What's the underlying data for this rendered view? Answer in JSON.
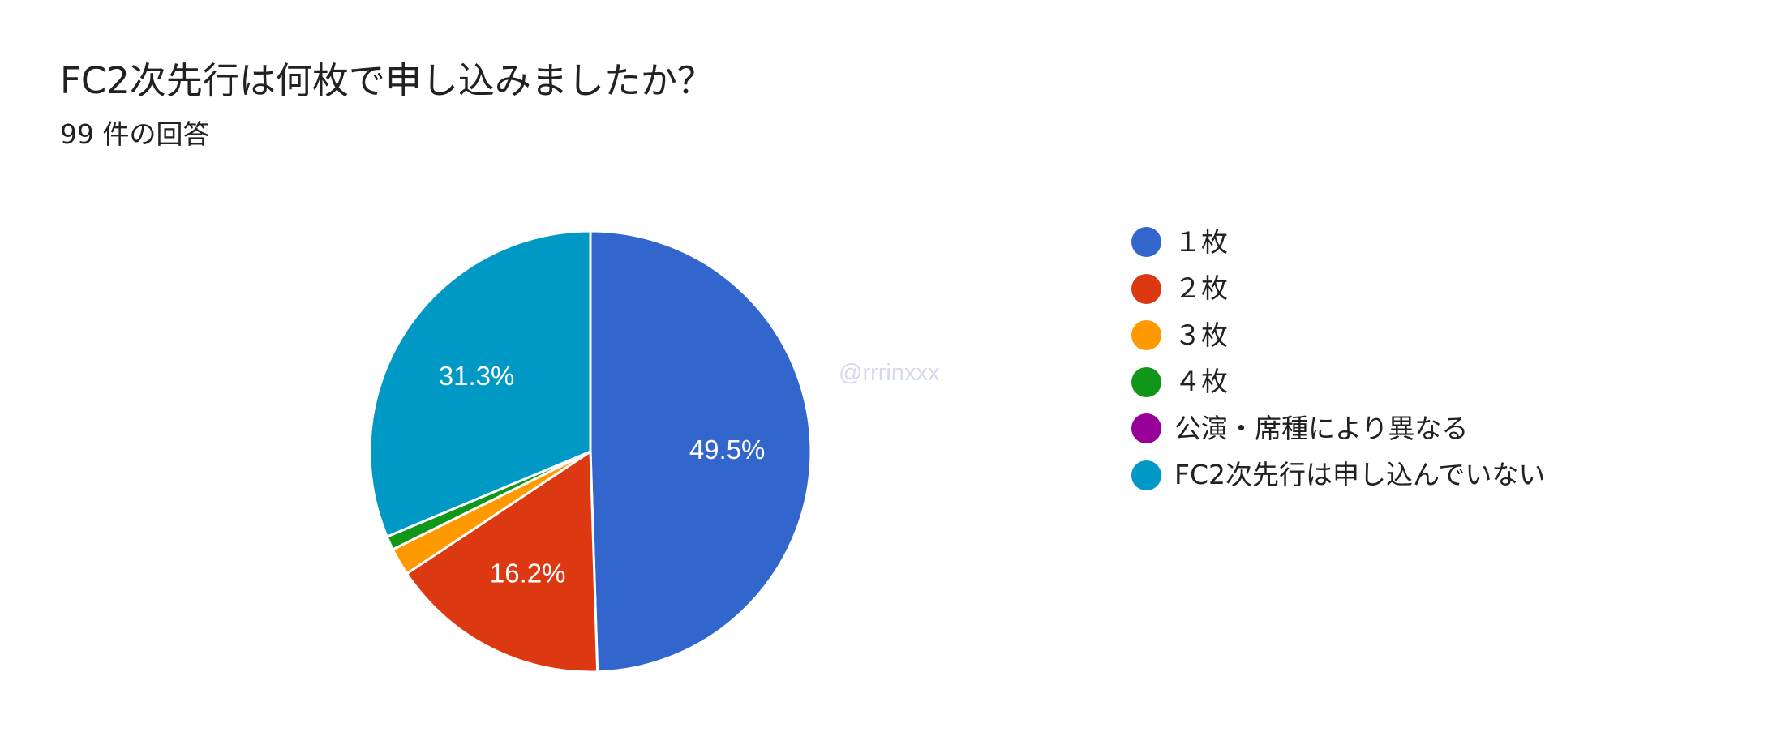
{
  "header": {
    "title": "FC2次先行は何枚で申し込みましたか？",
    "subtitle": "99 件の回答"
  },
  "watermark": "@rrrinxxx",
  "chart_data": {
    "type": "pie",
    "title": "FC2次先行は何枚で申し込みましたか？",
    "total_responses": 99,
    "legend_position": "right",
    "slices": [
      {
        "label": "１枚",
        "percent": 49.5,
        "count": 49,
        "color": "#3366cc",
        "show_label": true,
        "display": "49.5%"
      },
      {
        "label": "２枚",
        "percent": 16.2,
        "count": 16,
        "color": "#dc3912",
        "show_label": true,
        "display": "16.2%"
      },
      {
        "label": "３枚",
        "percent": 2.0,
        "count": 2,
        "color": "#ff9900",
        "show_label": false,
        "display": ""
      },
      {
        "label": "４枚",
        "percent": 1.0,
        "count": 1,
        "color": "#109618",
        "show_label": false,
        "display": ""
      },
      {
        "label": "公演・席種により異なる",
        "percent": 0.0,
        "count": 0,
        "color": "#990099",
        "show_label": false,
        "display": ""
      },
      {
        "label": "FC2次先行は申し込んでいない",
        "percent": 31.3,
        "count": 31,
        "color": "#0099c6",
        "show_label": true,
        "display": "31.3%"
      }
    ]
  }
}
